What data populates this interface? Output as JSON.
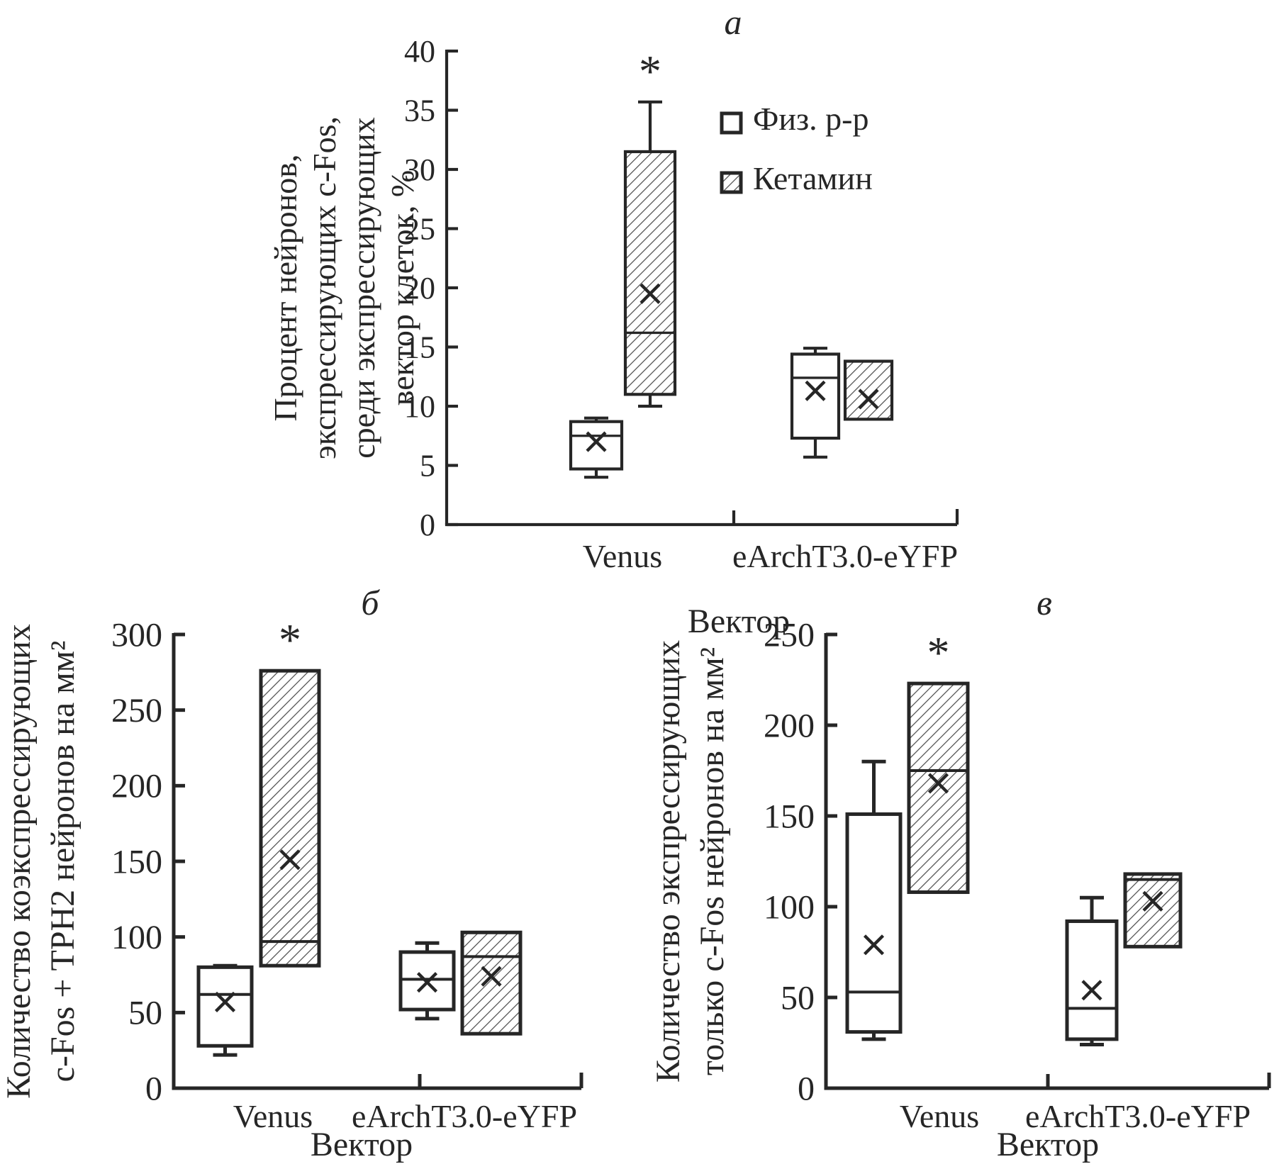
{
  "figure": {
    "background": "#ffffff",
    "ink_color": "#262626",
    "hatch_color": "#4a4a4a",
    "mean_marker": "×",
    "significance_marker": "*",
    "xlabel": "Вектор",
    "categories": [
      "Venus",
      "eArchT3.0-eYFP"
    ],
    "legend": {
      "shown_on_panel": "a",
      "entries": [
        {
          "label": "Физ. р-р",
          "style": "open"
        },
        {
          "label": "Кетамин",
          "style": "hatched"
        }
      ]
    }
  },
  "chart_data": [
    {
      "type": "box",
      "panel_letter": "a",
      "ylabel_lines": [
        "Процент нейронов,",
        "экспрессирующих c-Fos,",
        "среди экспрессирующих",
        "вектор клеток, %"
      ],
      "xlabel": "Вектор",
      "categories": [
        "Venus",
        "eArchT3.0-eYFP"
      ],
      "ylim": [
        0,
        40
      ],
      "ytick_step": 5,
      "yticks": [
        0,
        5,
        10,
        15,
        20,
        25,
        30,
        35,
        40
      ],
      "grid": false,
      "legend_position": "right-inside",
      "series": [
        {
          "name": "Физ. р-р",
          "style": "open",
          "boxes": [
            {
              "category": "Venus",
              "whisker_low": 4,
              "q1": 4.7,
              "median": 7.5,
              "mean": 7,
              "q3": 8.7,
              "whisker_high": 9,
              "significant": false
            },
            {
              "category": "eArchT3.0-eYFP",
              "whisker_low": 5.7,
              "q1": 7.3,
              "median": 12.4,
              "mean": 11.3,
              "q3": 14.4,
              "whisker_high": 14.9,
              "significant": false
            }
          ]
        },
        {
          "name": "Кетамин",
          "style": "hatched",
          "boxes": [
            {
              "category": "Venus",
              "whisker_low": 10,
              "q1": 11,
              "median": 16.2,
              "mean": 19.5,
              "q3": 31.5,
              "whisker_high": 35.7,
              "significant": true
            },
            {
              "category": "eArchT3.0-eYFP",
              "whisker_low": null,
              "q1": 8.9,
              "median": null,
              "mean": 10.6,
              "q3": 13.8,
              "whisker_high": null,
              "significant": false
            }
          ]
        }
      ]
    },
    {
      "type": "box",
      "panel_letter": "б",
      "ylabel_lines": [
        "Количество коэкспрессирующих",
        "c-Fos + TPH2 нейронов на мм²"
      ],
      "xlabel": "Вектор",
      "categories": [
        "Venus",
        "eArchT3.0-eYFP"
      ],
      "ylim": [
        0,
        300
      ],
      "ytick_step": 50,
      "yticks": [
        0,
        50,
        100,
        150,
        200,
        250,
        300
      ],
      "grid": false,
      "series": [
        {
          "name": "Физ. р-р",
          "style": "open",
          "boxes": [
            {
              "category": "Venus",
              "whisker_low": 22,
              "q1": 28,
              "median": 62,
              "mean": 57,
              "q3": 80,
              "whisker_high": 81,
              "significant": false
            },
            {
              "category": "eArchT3.0-eYFP",
              "whisker_low": 46,
              "q1": 52,
              "median": 72,
              "mean": 70,
              "q3": 90,
              "whisker_high": 96,
              "significant": false
            }
          ]
        },
        {
          "name": "Кетамин",
          "style": "hatched",
          "boxes": [
            {
              "category": "Venus",
              "whisker_low": null,
              "q1": 81,
              "median": 97,
              "mean": 151,
              "q3": 276,
              "whisker_high": null,
              "significant": true
            },
            {
              "category": "eArchT3.0-eYFP",
              "whisker_low": null,
              "q1": 36,
              "median": 87,
              "mean": 74,
              "q3": 103,
              "whisker_high": null,
              "significant": false
            }
          ]
        }
      ]
    },
    {
      "type": "box",
      "panel_letter": "в",
      "ylabel_lines": [
        "Количество экспрессирующих",
        "только c-Fos нейронов на мм²"
      ],
      "xlabel": "Вектор",
      "categories": [
        "Venus",
        "eArchT3.0-eYFP"
      ],
      "ylim": [
        0,
        250
      ],
      "ytick_step": 50,
      "yticks": [
        0,
        50,
        100,
        150,
        200,
        250
      ],
      "grid": false,
      "series": [
        {
          "name": "Физ. р-р",
          "style": "open",
          "boxes": [
            {
              "category": "Venus",
              "whisker_low": 27,
              "q1": 31,
              "median": 53,
              "mean": 79,
              "q3": 151,
              "whisker_high": 180,
              "significant": false
            },
            {
              "category": "eArchT3.0-eYFP",
              "whisker_low": 24,
              "q1": 27,
              "median": 44,
              "mean": 54,
              "q3": 92,
              "whisker_high": 105,
              "significant": false
            }
          ]
        },
        {
          "name": "Кетамин",
          "style": "hatched",
          "boxes": [
            {
              "category": "Venus",
              "whisker_low": null,
              "q1": 108,
              "median": 175,
              "mean": 168,
              "q3": 223,
              "whisker_high": null,
              "significant": true
            },
            {
              "category": "eArchT3.0-eYFP",
              "whisker_low": null,
              "q1": 78,
              "median": 115,
              "mean": 103,
              "q3": 118,
              "whisker_high": null,
              "significant": false
            }
          ]
        }
      ]
    }
  ]
}
